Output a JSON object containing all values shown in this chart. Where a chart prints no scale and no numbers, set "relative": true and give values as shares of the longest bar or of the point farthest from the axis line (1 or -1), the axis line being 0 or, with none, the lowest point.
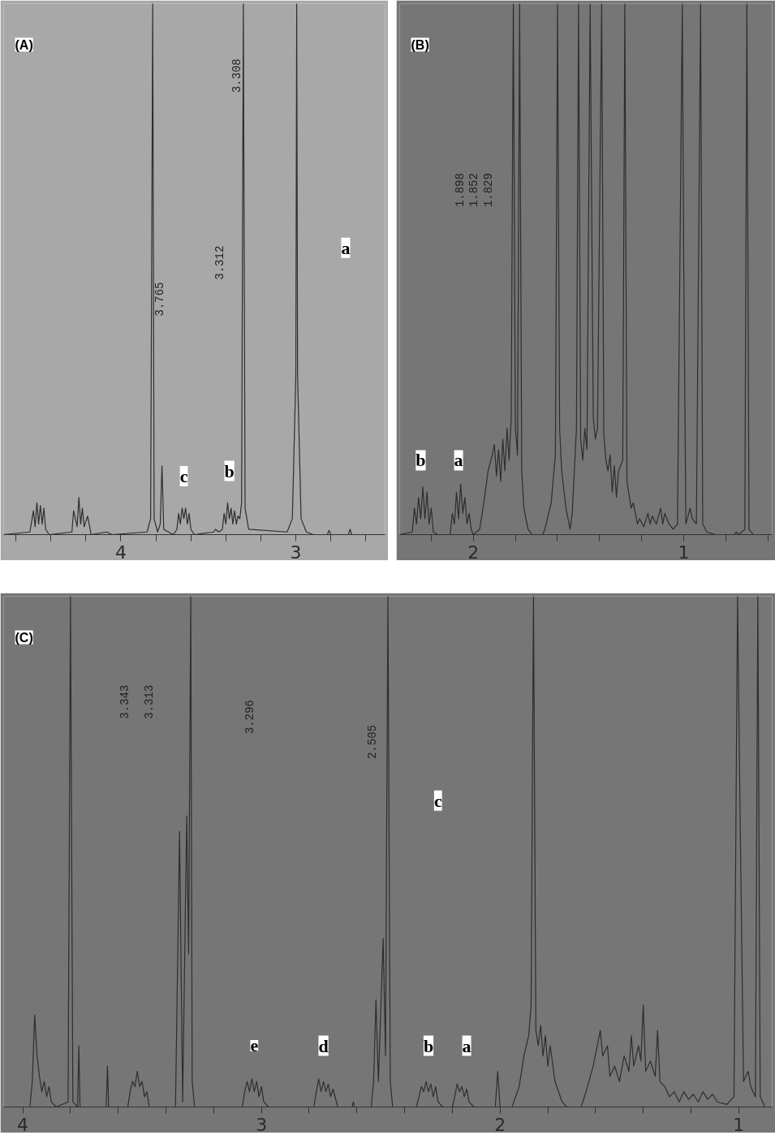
{
  "chart_data": [
    {
      "type": "line",
      "relative": true,
      "xlim": [
        4.67,
        2.49
      ],
      "xticks": [
        {
          "value": 4.6,
          "label": null
        },
        {
          "value": 4.4,
          "label": null
        },
        {
          "value": 4.2,
          "label": null
        },
        4,
        {
          "value": 3.8,
          "label": null
        },
        {
          "value": 3.6,
          "label": null
        },
        {
          "value": 3.4,
          "label": null
        },
        {
          "value": 3.2,
          "label": null
        },
        3,
        {
          "value": 2.8,
          "label": null
        },
        {
          "value": 2.6,
          "label": null
        }
      ],
      "tick_labels": "x",
      "grid": false,
      "annotations": [
        "(A)",
        "3.765",
        "3.312",
        "3.308",
        {
          "text": "a",
          "x": 2.715,
          "y": 0.54
        },
        {
          "text": "c",
          "x": 3.64,
          "y": 0.11
        },
        {
          "text": "b",
          "x": 3.38,
          "y": 0.12
        }
      ],
      "series": [
        {
          "color": "#2e2e2e",
          "x": [
            4.67,
            4.52,
            4.5,
            4.49,
            4.48,
            4.47,
            4.46,
            4.45,
            4.44,
            4.43,
            4.41,
            4.28,
            4.27,
            4.25,
            4.24,
            4.23,
            4.22,
            4.21,
            4.19,
            4.17,
            4.08,
            4.07,
            4.05,
            3.85,
            3.83,
            3.818,
            3.81,
            3.79,
            3.775,
            3.765,
            3.755,
            3.7,
            3.68,
            3.67,
            3.66,
            3.65,
            3.64,
            3.63,
            3.62,
            3.61,
            3.6,
            3.58,
            3.47,
            3.46,
            3.44,
            3.42,
            3.41,
            3.4,
            3.39,
            3.38,
            3.37,
            3.36,
            3.35,
            3.34,
            3.33,
            3.32,
            3.31,
            3.3,
            3.29,
            3.27,
            3.05,
            3.02,
            3.0,
            2.995,
            2.99,
            2.97,
            2.94,
            2.9,
            2.82,
            2.81,
            2.8,
            2.7,
            2.69,
            2.68,
            2.49
          ],
          "values": [
            0,
            0.005,
            0.045,
            0.015,
            0.06,
            0.02,
            0.055,
            0.02,
            0.05,
            0.01,
            0,
            0.005,
            0.045,
            0.015,
            0.07,
            0.02,
            0.05,
            0.015,
            0.035,
            0,
            0.005,
            0.003,
            0,
            0.005,
            0.03,
            1,
            0.03,
            0.005,
            0.02,
            0.13,
            0.01,
            0,
            0.01,
            0.04,
            0.02,
            0.05,
            0.03,
            0.05,
            0.02,
            0.04,
            0.01,
            0,
            0.005,
            0.01,
            0.005,
            0.01,
            0.04,
            0.02,
            0.06,
            0.03,
            0.05,
            0.02,
            0.045,
            0.02,
            0.035,
            0.03,
            0.06,
            1,
            0.05,
            0.01,
            0.005,
            0.03,
            0.3,
            1,
            0.3,
            0.03,
            0.005,
            0,
            0,
            0.008,
            0,
            0,
            0.01,
            0,
            0
          ]
        }
      ]
    },
    {
      "type": "line",
      "relative": true,
      "xlim": [
        2.35,
        0.58
      ],
      "xticks": [
        {
          "value": 2.2,
          "label": null
        },
        2,
        {
          "value": 1.8,
          "label": null
        },
        {
          "value": 1.6,
          "label": null
        },
        {
          "value": 1.4,
          "label": null
        },
        {
          "value": 1.2,
          "label": null
        },
        1,
        {
          "value": 0.8,
          "label": null
        },
        {
          "value": 0.6,
          "label": null
        }
      ],
      "tick_labels": "x",
      "grid": false,
      "annotations": [
        "(B)",
        "1.898",
        "1.852",
        "1.829",
        {
          "text": "b",
          "x": 2.25,
          "y": 0.14
        },
        {
          "text": "a",
          "x": 2.07,
          "y": 0.14
        }
      ],
      "series": [
        {
          "color": "#2e2e2e",
          "x": [
            2.35,
            2.29,
            2.28,
            2.27,
            2.26,
            2.25,
            2.24,
            2.23,
            2.22,
            2.21,
            2.2,
            2.19,
            2.17,
            2.11,
            2.1,
            2.09,
            2.08,
            2.07,
            2.06,
            2.05,
            2.04,
            2.03,
            2.02,
            2.01,
            2.0,
            1.97,
            1.95,
            1.93,
            1.91,
            1.9,
            1.89,
            1.88,
            1.87,
            1.86,
            1.85,
            1.84,
            1.83,
            1.82,
            1.81,
            1.8,
            1.79,
            1.78,
            1.77,
            1.76,
            1.74,
            1.72,
            1.67,
            1.66,
            1.63,
            1.61,
            1.6,
            1.59,
            1.58,
            1.56,
            1.54,
            1.53,
            1.52,
            1.51,
            1.5,
            1.49,
            1.48,
            1.47,
            1.46,
            1.445,
            1.43,
            1.42,
            1.41,
            1.39,
            1.38,
            1.37,
            1.36,
            1.35,
            1.34,
            1.33,
            1.32,
            1.31,
            1.29,
            1.28,
            1.27,
            1.25,
            1.24,
            1.22,
            1.21,
            1.19,
            1.17,
            1.16,
            1.15,
            1.13,
            1.11,
            1.1,
            1.09,
            1.07,
            1.05,
            1.03,
            1.007,
            1.0,
            0.99,
            0.97,
            0.96,
            0.94,
            0.92,
            0.91,
            0.89,
            0.85,
            0.76,
            0.75,
            0.74,
            0.71,
            0.7,
            0.69,
            0.67,
            0.58
          ],
          "values": [
            0,
            0.005,
            0.05,
            0.02,
            0.07,
            0.03,
            0.09,
            0.03,
            0.08,
            0.02,
            0.05,
            0.005,
            0,
            0,
            0.04,
            0.02,
            0.08,
            0.03,
            0.095,
            0.04,
            0.07,
            0.02,
            0.04,
            0.01,
            0,
            0.01,
            0.06,
            0.12,
            0.15,
            0.17,
            0.11,
            0.16,
            0.1,
            0.18,
            0.12,
            0.2,
            0.14,
            0.22,
            1,
            0.2,
            0.15,
            1,
            0.12,
            0.05,
            0.01,
            0,
            0,
            0.01,
            0.06,
            0.15,
            1,
            0.2,
            0.12,
            0.05,
            0.01,
            0.04,
            0.12,
            0.2,
            1,
            0.18,
            0.14,
            0.2,
            0.16,
            1,
            0.22,
            0.18,
            0.2,
            1,
            0.19,
            0.14,
            0.12,
            0.15,
            0.08,
            0.13,
            0.07,
            0.12,
            0.14,
            1,
            0.1,
            0.05,
            0.06,
            0.02,
            0.03,
            0.015,
            0.04,
            0.02,
            0.035,
            0.02,
            0.05,
            0.02,
            0.04,
            0.02,
            0.01,
            0.02,
            1,
            0.5,
            0.02,
            0.05,
            0.03,
            0.02,
            1,
            0.02,
            0.005,
            0,
            0,
            0.005,
            0,
            0.01,
            1,
            0.01,
            0,
            0
          ]
        }
      ]
    },
    {
      "type": "line",
      "relative": true,
      "xlim": [
        4.08,
        0.86
      ],
      "xticks": [
        4,
        {
          "value": 3.8,
          "label": null
        },
        {
          "value": 3.6,
          "label": null
        },
        {
          "value": 3.4,
          "label": null
        },
        {
          "value": 3.2,
          "label": null
        },
        3,
        {
          "value": 2.8,
          "label": null
        },
        {
          "value": 2.6,
          "label": null
        },
        {
          "value": 2.4,
          "label": null
        },
        {
          "value": 2.2,
          "label": null
        },
        2,
        {
          "value": 1.8,
          "label": null
        },
        {
          "value": 1.6,
          "label": null
        },
        {
          "value": 1.4,
          "label": null
        },
        {
          "value": 1.2,
          "label": null
        },
        1
      ],
      "tick_labels": "x",
      "grid": false,
      "annotations": [
        "(C)",
        "3.343",
        "3.313",
        "3.296",
        "2.505",
        {
          "text": "c",
          "x": 2.26,
          "y": 0.6
        },
        {
          "text": "e",
          "x": 3.03,
          "y": 0.12
        },
        {
          "text": "d",
          "x": 2.74,
          "y": 0.12
        },
        {
          "text": "b",
          "x": 2.3,
          "y": 0.12
        },
        {
          "text": "a",
          "x": 2.14,
          "y": 0.12
        }
      ],
      "series": [
        {
          "color": "#2e2e2e",
          "x": [
            4.08,
            3.97,
            3.96,
            3.95,
            3.94,
            3.93,
            3.92,
            3.91,
            3.9,
            3.89,
            3.88,
            3.86,
            3.81,
            3.8,
            3.79,
            3.77,
            3.765,
            3.76,
            3.65,
            3.645,
            3.64,
            3.56,
            3.55,
            3.54,
            3.53,
            3.52,
            3.51,
            3.5,
            3.49,
            3.48,
            3.47,
            3.36,
            3.343,
            3.33,
            3.313,
            3.305,
            3.296,
            3.29,
            3.28,
            3.08,
            3.07,
            3.06,
            3.05,
            3.04,
            3.03,
            3.02,
            3.01,
            3.0,
            2.99,
            2.97,
            2.78,
            2.77,
            2.76,
            2.75,
            2.74,
            2.73,
            2.72,
            2.71,
            2.7,
            2.68,
            2.62,
            2.615,
            2.61,
            2.54,
            2.53,
            2.52,
            2.51,
            2.49,
            2.48,
            2.47,
            2.46,
            2.45,
            2.35,
            2.34,
            2.33,
            2.32,
            2.31,
            2.3,
            2.29,
            2.28,
            2.27,
            2.26,
            2.24,
            2.2,
            2.19,
            2.18,
            2.17,
            2.16,
            2.15,
            2.14,
            2.13,
            2.11,
            2.02,
            2.01,
            2.0,
            1.95,
            1.92,
            1.9,
            1.88,
            1.87,
            1.86,
            1.85,
            1.84,
            1.83,
            1.82,
            1.81,
            1.8,
            1.79,
            1.77,
            1.74,
            1.72,
            1.66,
            1.64,
            1.61,
            1.58,
            1.57,
            1.55,
            1.54,
            1.52,
            1.5,
            1.48,
            1.46,
            1.45,
            1.44,
            1.42,
            1.41,
            1.4,
            1.39,
            1.37,
            1.35,
            1.34,
            1.33,
            1.31,
            1.29,
            1.27,
            1.25,
            1.23,
            1.21,
            1.19,
            1.17,
            1.15,
            1.13,
            1.11,
            1.09,
            1.05,
            1.02,
            1.005,
            0.995,
            0.98,
            0.96,
            0.95,
            0.93,
            0.92,
            0.91,
            0.89,
            0.86
          ],
          "values": [
            0,
            0,
            0.05,
            0.18,
            0.1,
            0.06,
            0.03,
            0.05,
            0.02,
            0.04,
            0.01,
            0,
            0.01,
            1,
            0.01,
            0,
            0.12,
            0,
            0,
            0.08,
            0,
            0,
            0.03,
            0.05,
            0.04,
            0.07,
            0.04,
            0.05,
            0.02,
            0.03,
            0,
            0,
            0.54,
            0.01,
            0.57,
            0.3,
            1,
            0.05,
            0,
            0,
            0.03,
            0.05,
            0.03,
            0.055,
            0.03,
            0.05,
            0.02,
            0.04,
            0.01,
            0,
            0,
            0.03,
            0.055,
            0.03,
            0.05,
            0.03,
            0.045,
            0.02,
            0.035,
            0,
            0,
            0.01,
            0,
            0,
            0.05,
            0.21,
            0.05,
            0.33,
            0.1,
            1,
            0.05,
            0,
            0,
            0.02,
            0.04,
            0.03,
            0.05,
            0.03,
            0.045,
            0.02,
            0.04,
            0.01,
            0,
            0,
            0.02,
            0.045,
            0.03,
            0.04,
            0.02,
            0.035,
            0.01,
            0,
            0,
            0.07,
            0,
            0,
            0.04,
            0.1,
            0.14,
            0.2,
            1,
            0.15,
            0.12,
            0.16,
            0.1,
            0.14,
            0.08,
            0.12,
            0.05,
            0.01,
            0,
            0,
            0.03,
            0.08,
            0.15,
            0.1,
            0.12,
            0.06,
            0.08,
            0.05,
            0.1,
            0.07,
            0.14,
            0.08,
            0.12,
            0.09,
            0.2,
            0.07,
            0.09,
            0.06,
            0.15,
            0.05,
            0.04,
            0.02,
            0.03,
            0.01,
            0.03,
            0.015,
            0.025,
            0.01,
            0.03,
            0.015,
            0.025,
            0.01,
            0.005,
            0.02,
            1,
            0.6,
            0.05,
            0.07,
            0.04,
            0.02,
            1,
            0.02,
            0,
            0
          ]
        }
      ]
    }
  ]
}
